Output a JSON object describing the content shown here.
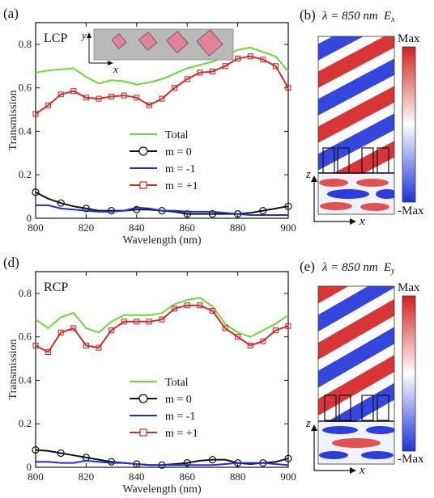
{
  "chart_data": [
    {
      "type": "line",
      "panel_label": "(a)",
      "polarization": "LCP",
      "xlabel": "Wavelength (nm)",
      "ylabel": "Transmission",
      "xlim": [
        800,
        900
      ],
      "ylim": [
        0,
        0.9
      ],
      "xticks": [
        "800",
        "820",
        "840",
        "860",
        "880",
        "900"
      ],
      "yticks": [
        "0",
        "0.2",
        "0.4",
        "0.6",
        "0.8"
      ],
      "inset_axes": {
        "x": "x",
        "y": "y"
      },
      "legend_position": "center",
      "series": [
        {
          "name": "Total",
          "color": "#66dd33",
          "marker": "none",
          "x": [
            800,
            805,
            810,
            815,
            820,
            825,
            830,
            835,
            840,
            845,
            850,
            855,
            860,
            865,
            870,
            875,
            880,
            885,
            890,
            895,
            900
          ],
          "y": [
            0.67,
            0.68,
            0.685,
            0.69,
            0.65,
            0.62,
            0.635,
            0.63,
            0.615,
            0.625,
            0.64,
            0.665,
            0.69,
            0.705,
            0.72,
            0.745,
            0.775,
            0.785,
            0.765,
            0.745,
            0.675
          ]
        },
        {
          "name": "m = 0",
          "color": "#111111",
          "marker": "circle",
          "x": [
            800,
            805,
            810,
            815,
            820,
            825,
            830,
            835,
            840,
            845,
            850,
            855,
            860,
            865,
            870,
            875,
            880,
            885,
            890,
            895,
            900
          ],
          "y": [
            0.12,
            0.09,
            0.07,
            0.055,
            0.045,
            0.035,
            0.035,
            0.035,
            0.04,
            0.04,
            0.035,
            0.03,
            0.02,
            0.02,
            0.02,
            0.02,
            0.02,
            0.025,
            0.035,
            0.045,
            0.055
          ]
        },
        {
          "name": "m = -1",
          "color": "#1f2ed6",
          "marker": "none",
          "x": [
            800,
            805,
            810,
            815,
            820,
            825,
            830,
            835,
            840,
            845,
            850,
            855,
            860,
            865,
            870,
            875,
            880,
            885,
            890,
            895,
            900
          ],
          "y": [
            0.06,
            0.06,
            0.045,
            0.04,
            0.035,
            0.03,
            0.03,
            0.035,
            0.05,
            0.045,
            0.035,
            0.035,
            0.03,
            0.03,
            0.03,
            0.025,
            0.02,
            0.015,
            0.015,
            0.015,
            0.015
          ]
        },
        {
          "name": "m = +1",
          "color": "#d42a2a",
          "marker": "square",
          "x": [
            800,
            805,
            810,
            815,
            820,
            825,
            830,
            835,
            840,
            845,
            850,
            855,
            860,
            865,
            870,
            875,
            880,
            885,
            890,
            895,
            900
          ],
          "y": [
            0.48,
            0.52,
            0.57,
            0.585,
            0.555,
            0.55,
            0.56,
            0.565,
            0.555,
            0.52,
            0.55,
            0.6,
            0.64,
            0.67,
            0.675,
            0.7,
            0.735,
            0.745,
            0.73,
            0.7,
            0.6
          ]
        }
      ]
    },
    {
      "type": "line",
      "panel_label": "(d)",
      "polarization": "RCP",
      "xlabel": "Wavelength (nm)",
      "ylabel": "Transmission",
      "xlim": [
        800,
        900
      ],
      "ylim": [
        0,
        0.9
      ],
      "xticks": [
        "800",
        "820",
        "840",
        "860",
        "880",
        "900"
      ],
      "yticks": [
        "0",
        "0.2",
        "0.4",
        "0.6",
        "0.8"
      ],
      "legend_position": "center",
      "series": [
        {
          "name": "Total",
          "color": "#66dd33",
          "marker": "none",
          "x": [
            800,
            805,
            810,
            815,
            820,
            825,
            830,
            835,
            840,
            845,
            850,
            855,
            860,
            865,
            870,
            875,
            880,
            885,
            890,
            895,
            900
          ],
          "y": [
            0.68,
            0.64,
            0.69,
            0.71,
            0.64,
            0.62,
            0.67,
            0.7,
            0.7,
            0.7,
            0.71,
            0.75,
            0.77,
            0.78,
            0.74,
            0.66,
            0.62,
            0.6,
            0.63,
            0.66,
            0.7
          ]
        },
        {
          "name": "m = 0",
          "color": "#111111",
          "marker": "circle",
          "x": [
            800,
            805,
            810,
            815,
            820,
            825,
            830,
            835,
            840,
            845,
            850,
            855,
            860,
            865,
            870,
            875,
            880,
            885,
            890,
            895,
            900
          ],
          "y": [
            0.08,
            0.075,
            0.065,
            0.055,
            0.045,
            0.035,
            0.025,
            0.02,
            0.015,
            0.01,
            0.01,
            0.015,
            0.02,
            0.03,
            0.035,
            0.035,
            0.02,
            0.015,
            0.02,
            0.025,
            0.04
          ]
        },
        {
          "name": "m = -1",
          "color": "#1f2ed6",
          "marker": "none",
          "x": [
            800,
            805,
            810,
            815,
            820,
            825,
            830,
            835,
            840,
            845,
            850,
            855,
            860,
            865,
            870,
            875,
            880,
            885,
            890,
            895,
            900
          ],
          "y": [
            0.025,
            0.025,
            0.02,
            0.02,
            0.03,
            0.025,
            0.02,
            0.02,
            0.015,
            0.01,
            0.01,
            0.01,
            0.01,
            0.01,
            0.01,
            0.015,
            0.02,
            0.02,
            0.02,
            0.015,
            0.01
          ]
        },
        {
          "name": "m = +1",
          "color": "#d42a2a",
          "marker": "square",
          "x": [
            800,
            805,
            810,
            815,
            820,
            825,
            830,
            835,
            840,
            845,
            850,
            855,
            860,
            865,
            870,
            875,
            880,
            885,
            890,
            895,
            900
          ],
          "y": [
            0.56,
            0.53,
            0.62,
            0.64,
            0.56,
            0.55,
            0.63,
            0.67,
            0.67,
            0.67,
            0.68,
            0.73,
            0.745,
            0.745,
            0.72,
            0.64,
            0.6,
            0.56,
            0.58,
            0.63,
            0.65
          ]
        }
      ]
    }
  ],
  "fields": [
    {
      "panel_label": "(b)",
      "lambda_text": "λ = 850 nm",
      "component": "E",
      "sub": "x",
      "max_label": "Max",
      "min_label": "-Max",
      "axis_z": "z",
      "axis_x": "x"
    },
    {
      "panel_label": "(e)",
      "lambda_text": "λ = 850 nm",
      "component": "E",
      "sub": "y",
      "max_label": "Max",
      "min_label": "-Max",
      "axis_z": "z",
      "axis_x": "x"
    }
  ],
  "colors": {
    "field_red": "#d42020",
    "field_blue": "#1e32d8",
    "axis": "#111111"
  }
}
